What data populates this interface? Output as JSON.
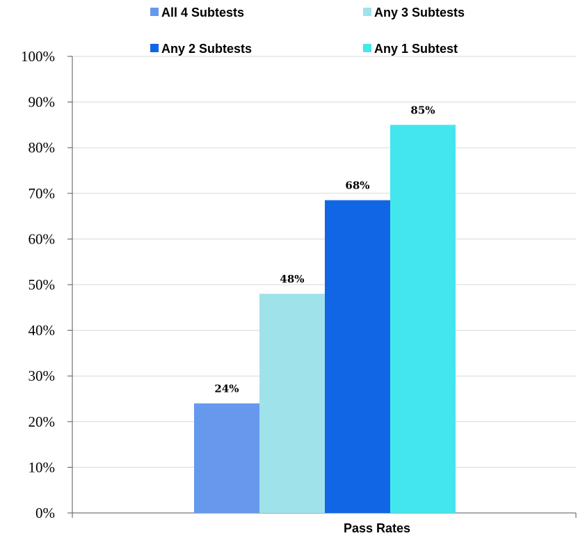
{
  "chart_data": {
    "type": "bar",
    "categories": [
      "Pass Rates"
    ],
    "series": [
      {
        "name": "All 4 Subtests",
        "values": [
          24
        ],
        "color": "#6699EE",
        "label": "24%"
      },
      {
        "name": "Any 3 Subtests",
        "values": [
          48
        ],
        "color": "#A0E2EA",
        "label": "48%"
      },
      {
        "name": "Any 2 Subtests",
        "values": [
          68.5
        ],
        "color": "#1166E6",
        "label": "68%"
      },
      {
        "name": "Any 1 Subtest",
        "values": [
          85
        ],
        "color": "#44E6EE",
        "label": "85%"
      }
    ],
    "title": "",
    "xlabel": "Pass Rates",
    "ylabel": "",
    "ylim": [
      0,
      100
    ],
    "yticks": [
      "0%",
      "10%",
      "20%",
      "30%",
      "40%",
      "50%",
      "60%",
      "70%",
      "80%",
      "90%",
      "100%"
    ],
    "grid": true,
    "legend_position": "top"
  }
}
